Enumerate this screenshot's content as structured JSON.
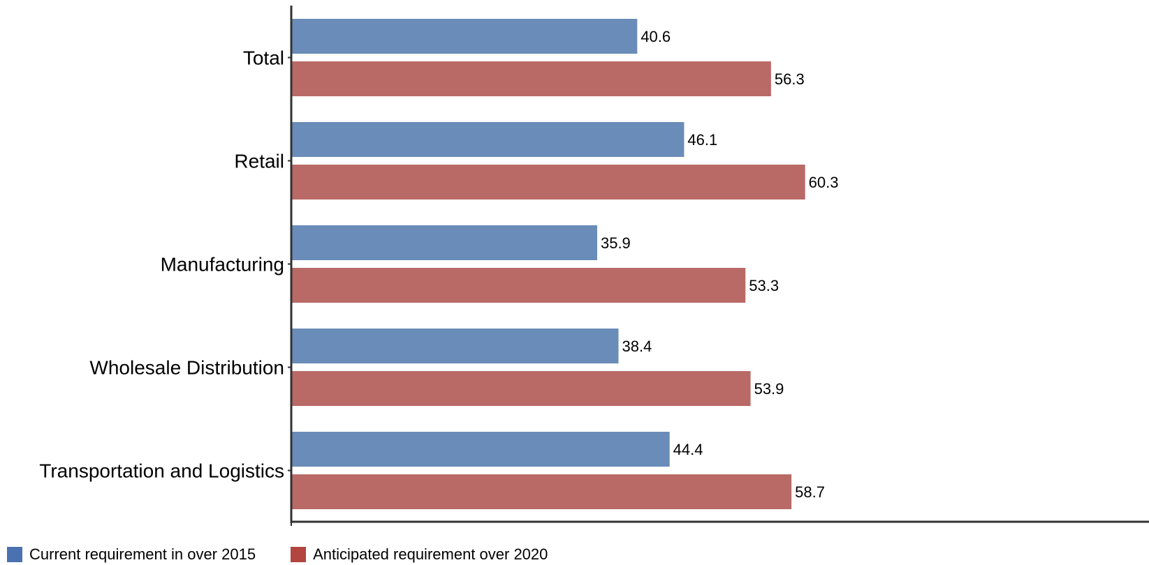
{
  "chart_data": {
    "type": "bar",
    "orientation": "horizontal",
    "categories": [
      "Total",
      "Retail",
      "Manufacturing",
      "Wholesale Distribution",
      "Transportation and Logistics"
    ],
    "series": [
      {
        "name": "Current requirement in over 2015",
        "values": [
          40.6,
          46.1,
          35.9,
          38.4,
          44.4
        ],
        "color": "#6a8cb8"
      },
      {
        "name": "Anticipated requirement over 2020",
        "values": [
          56.3,
          60.3,
          53.3,
          53.9,
          58.7
        ],
        "color": "#b96a66"
      }
    ],
    "legend_colors": [
      "#4a72b0",
      "#b2453f"
    ],
    "xlim": [
      0,
      100
    ],
    "grid": false,
    "legend_position": "bottom-left",
    "title": "",
    "xlabel": "",
    "ylabel": ""
  }
}
